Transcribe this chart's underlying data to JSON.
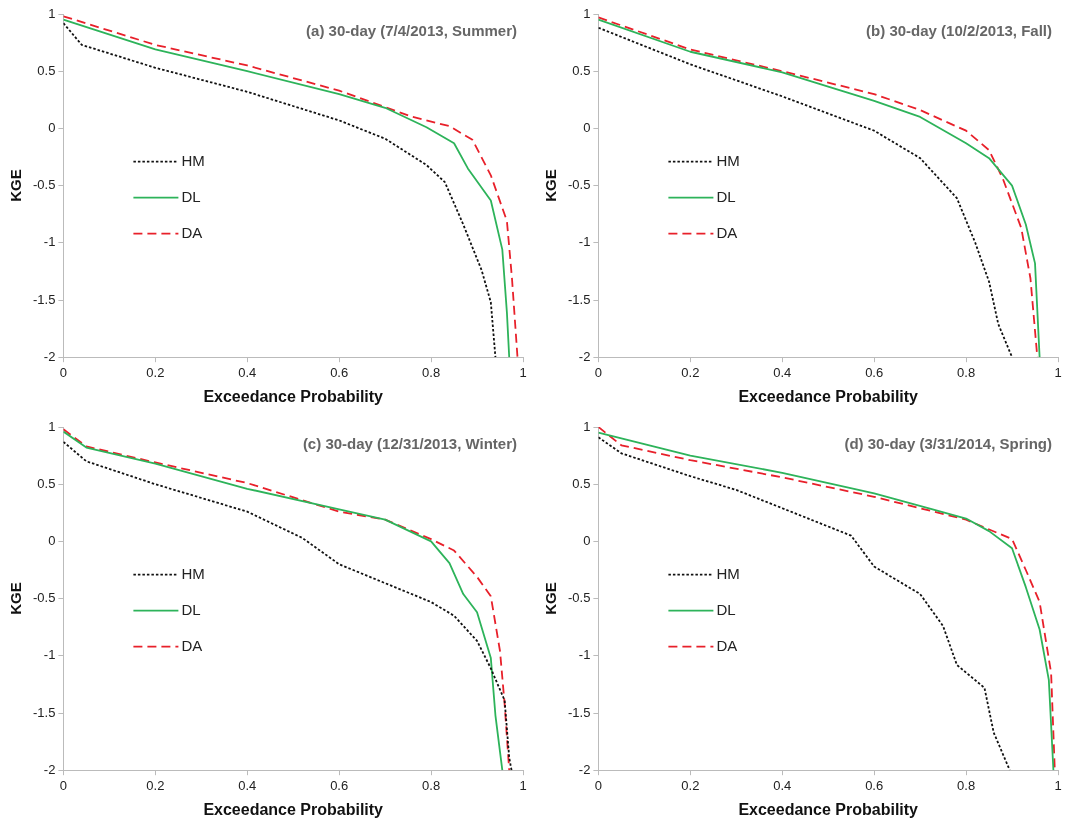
{
  "chart_data": [
    {
      "type": "line",
      "title": "(a) 30-day (7/4/2013, Summer)",
      "xlabel": "Exceedance Probability",
      "ylabel": "KGE",
      "xlim": [
        0,
        1
      ],
      "xticks": [
        0,
        0.2,
        0.4,
        0.6,
        0.8,
        1
      ],
      "ylim": [
        -2,
        1
      ],
      "yticks": [
        -2,
        -1.5,
        -1,
        -0.5,
        0,
        0.5,
        1
      ],
      "grid": false,
      "legend": "left",
      "marker": "none",
      "series": [
        {
          "name": "HM",
          "color": "#111111",
          "line_style": "dotted",
          "x": [
            0,
            0.04,
            0.2,
            0.4,
            0.6,
            0.7,
            0.79,
            0.83,
            0.87,
            0.91,
            0.93,
            0.94
          ],
          "values": [
            0.92,
            0.73,
            0.53,
            0.32,
            0.07,
            -0.09,
            -0.32,
            -0.47,
            -0.84,
            -1.24,
            -1.52,
            -2
          ]
        },
        {
          "name": "DL",
          "color": "#2db35a",
          "line_style": "solid",
          "x": [
            0,
            0.2,
            0.4,
            0.6,
            0.7,
            0.79,
            0.85,
            0.88,
            0.93,
            0.955,
            0.965,
            0.97
          ],
          "values": [
            0.95,
            0.69,
            0.5,
            0.3,
            0.18,
            0.01,
            -0.13,
            -0.35,
            -0.63,
            -1.06,
            -1.61,
            -2
          ]
        },
        {
          "name": "DA",
          "color": "#e8202a",
          "line_style": "dashed",
          "x": [
            0,
            0.2,
            0.4,
            0.6,
            0.76,
            0.84,
            0.89,
            0.93,
            0.965,
            0.976,
            0.988
          ],
          "values": [
            0.98,
            0.73,
            0.55,
            0.33,
            0.1,
            0.02,
            -0.1,
            -0.41,
            -0.81,
            -1.31,
            -2
          ]
        }
      ]
    },
    {
      "type": "line",
      "title": "(b) 30-day (10/2/2013, Fall)",
      "xlabel": "Exceedance Probability",
      "ylabel": "KGE",
      "xlim": [
        0,
        1
      ],
      "xticks": [
        0,
        0.2,
        0.4,
        0.6,
        0.8,
        1
      ],
      "ylim": [
        -2,
        1
      ],
      "yticks": [
        -2,
        -1.5,
        -1,
        -0.5,
        0,
        0.5,
        1
      ],
      "grid": false,
      "legend": "left",
      "marker": "none",
      "series": [
        {
          "name": "HM",
          "color": "#111111",
          "line_style": "dotted",
          "x": [
            0,
            0.2,
            0.4,
            0.6,
            0.7,
            0.78,
            0.82,
            0.85,
            0.87,
            0.9
          ],
          "values": [
            0.88,
            0.56,
            0.28,
            -0.02,
            -0.26,
            -0.61,
            -1.0,
            -1.34,
            -1.71,
            -2
          ]
        },
        {
          "name": "DL",
          "color": "#2db35a",
          "line_style": "solid",
          "x": [
            0,
            0.2,
            0.4,
            0.6,
            0.7,
            0.8,
            0.85,
            0.9,
            0.93,
            0.95,
            0.96
          ],
          "values": [
            0.95,
            0.67,
            0.49,
            0.24,
            0.1,
            -0.13,
            -0.26,
            -0.5,
            -0.84,
            -1.18,
            -2
          ]
        },
        {
          "name": "DA",
          "color": "#e8202a",
          "line_style": "dashed",
          "x": [
            0,
            0.2,
            0.4,
            0.6,
            0.7,
            0.8,
            0.85,
            0.88,
            0.92,
            0.94,
            0.955
          ],
          "values": [
            0.97,
            0.69,
            0.5,
            0.3,
            0.16,
            -0.02,
            -0.19,
            -0.44,
            -0.87,
            -1.31,
            -2
          ]
        }
      ]
    },
    {
      "type": "line",
      "title": "(c) 30-day (12/31/2013, Winter)",
      "xlabel": "Exceedance Probability",
      "ylabel": "KGE",
      "xlim": [
        0,
        1
      ],
      "xticks": [
        0,
        0.2,
        0.4,
        0.6,
        0.8,
        1
      ],
      "ylim": [
        -2,
        1
      ],
      "yticks": [
        -2,
        -1.5,
        -1,
        -0.5,
        0,
        0.5,
        1
      ],
      "grid": false,
      "legend": "left",
      "marker": "none",
      "series": [
        {
          "name": "HM",
          "color": "#111111",
          "line_style": "dotted",
          "x": [
            0,
            0.05,
            0.2,
            0.4,
            0.52,
            0.6,
            0.8,
            0.85,
            0.9,
            0.93,
            0.96,
            0.97,
            0.975
          ],
          "values": [
            0.87,
            0.7,
            0.5,
            0.26,
            0.03,
            -0.2,
            -0.53,
            -0.65,
            -0.87,
            -1.11,
            -1.39,
            -1.89,
            -2
          ]
        },
        {
          "name": "DL",
          "color": "#2db35a",
          "line_style": "solid",
          "x": [
            0,
            0.05,
            0.2,
            0.4,
            0.6,
            0.7,
            0.8,
            0.84,
            0.87,
            0.9,
            0.93,
            0.94,
            0.955
          ],
          "values": [
            0.96,
            0.82,
            0.68,
            0.46,
            0.28,
            0.19,
            0.0,
            -0.19,
            -0.46,
            -0.62,
            -1.02,
            -1.52,
            -2
          ]
        },
        {
          "name": "DA",
          "color": "#e8202a",
          "line_style": "dashed",
          "x": [
            0,
            0.05,
            0.2,
            0.4,
            0.6,
            0.7,
            0.8,
            0.85,
            0.9,
            0.93,
            0.95,
            0.96,
            0.97
          ],
          "values": [
            0.98,
            0.83,
            0.69,
            0.51,
            0.26,
            0.19,
            0.02,
            -0.08,
            -0.31,
            -0.48,
            -0.96,
            -1.42,
            -2
          ]
        }
      ]
    },
    {
      "type": "line",
      "title": "(d) 30-day (3/31/2014, Spring)",
      "xlabel": "Exceedance Probability",
      "ylabel": "KGE",
      "xlim": [
        0,
        1
      ],
      "xticks": [
        0,
        0.2,
        0.4,
        0.6,
        0.8,
        1
      ],
      "ylim": [
        -2,
        1
      ],
      "yticks": [
        -2,
        -1.5,
        -1,
        -0.5,
        0,
        0.5,
        1
      ],
      "grid": false,
      "legend": "left",
      "marker": "none",
      "series": [
        {
          "name": "HM",
          "color": "#111111",
          "line_style": "dotted",
          "x": [
            0,
            0.05,
            0.2,
            0.3,
            0.4,
            0.55,
            0.6,
            0.7,
            0.75,
            0.78,
            0.84,
            0.86,
            0.895
          ],
          "values": [
            0.91,
            0.77,
            0.57,
            0.45,
            0.29,
            0.05,
            -0.22,
            -0.46,
            -0.74,
            -1.08,
            -1.28,
            -1.67,
            -2
          ]
        },
        {
          "name": "DL",
          "color": "#2db35a",
          "line_style": "solid",
          "x": [
            0,
            0.2,
            0.4,
            0.6,
            0.8,
            0.85,
            0.9,
            0.93,
            0.96,
            0.98,
            0.99
          ],
          "values": [
            0.95,
            0.75,
            0.6,
            0.42,
            0.2,
            0.09,
            -0.06,
            -0.4,
            -0.77,
            -1.21,
            -2
          ]
        },
        {
          "name": "DA",
          "color": "#e8202a",
          "line_style": "dashed",
          "x": [
            0,
            0.05,
            0.2,
            0.4,
            0.6,
            0.8,
            0.9,
            0.93,
            0.96,
            0.985,
            0.993
          ],
          "values": [
            1.0,
            0.84,
            0.71,
            0.56,
            0.39,
            0.19,
            0.02,
            -0.25,
            -0.53,
            -1.15,
            -2
          ]
        }
      ]
    }
  ]
}
